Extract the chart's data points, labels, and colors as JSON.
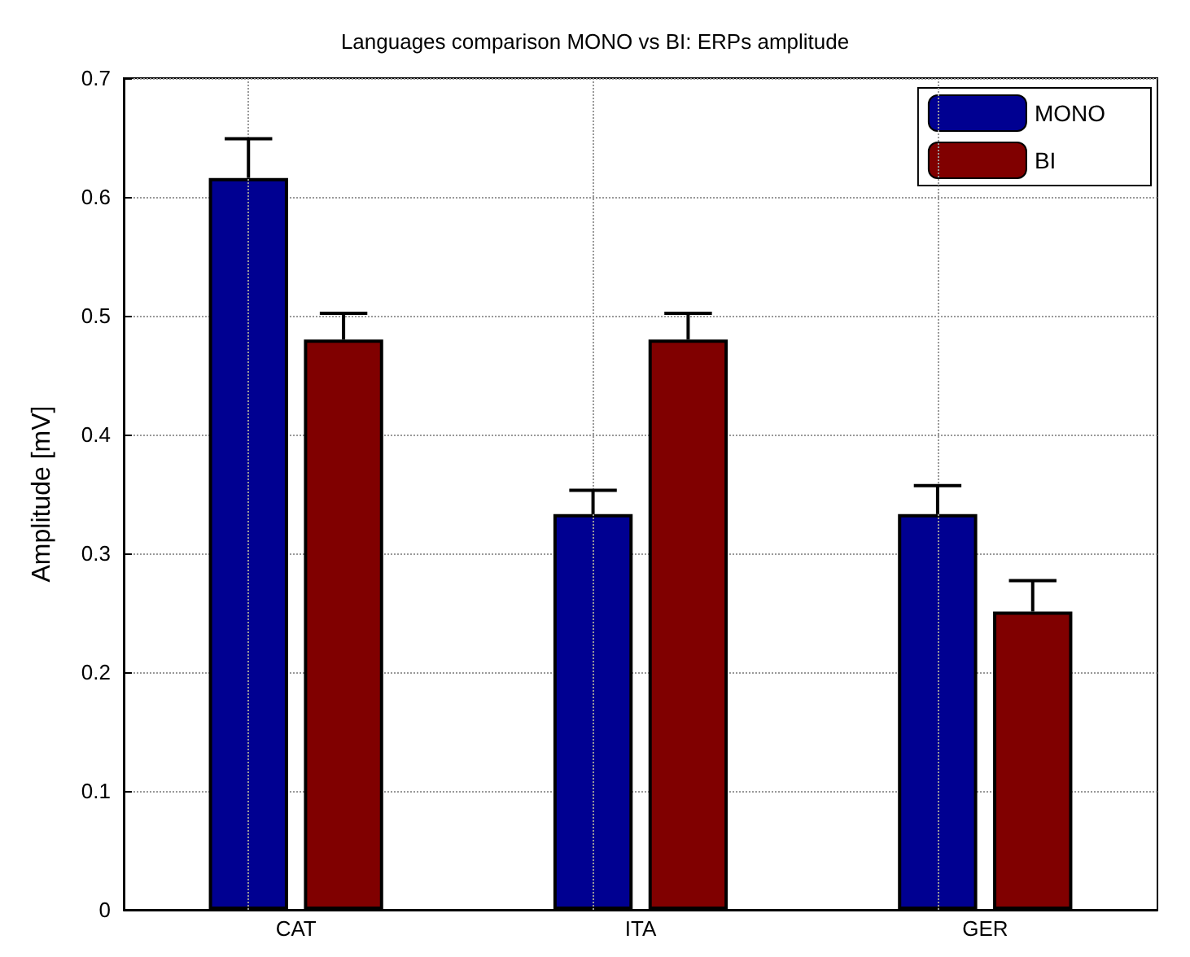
{
  "chart_data": {
    "type": "bar",
    "title": "Languages comparison MONO vs BI: ERPs amplitude",
    "ylabel": "Amplitude [mV]",
    "categories": [
      "CAT",
      "ITA",
      "GER"
    ],
    "series": [
      {
        "name": "MONO",
        "color": "#000091",
        "values": [
          0.616,
          0.333,
          0.333
        ],
        "errors": [
          [
            0.616,
            0.649
          ],
          [
            0.333,
            0.353
          ],
          [
            0.333,
            0.357
          ]
        ]
      },
      {
        "name": "BI",
        "color": "#800000",
        "values": [
          0.48,
          0.48,
          0.251
        ],
        "errors": [
          [
            0.48,
            0.502
          ],
          [
            0.48,
            0.502
          ],
          [
            0.251,
            0.277
          ]
        ]
      }
    ],
    "ylim": [
      0,
      0.7
    ],
    "yticks": [
      0,
      0.1,
      0.2,
      0.3,
      0.4,
      0.5,
      0.6,
      0.7
    ],
    "grid": true,
    "legend": "top right"
  }
}
